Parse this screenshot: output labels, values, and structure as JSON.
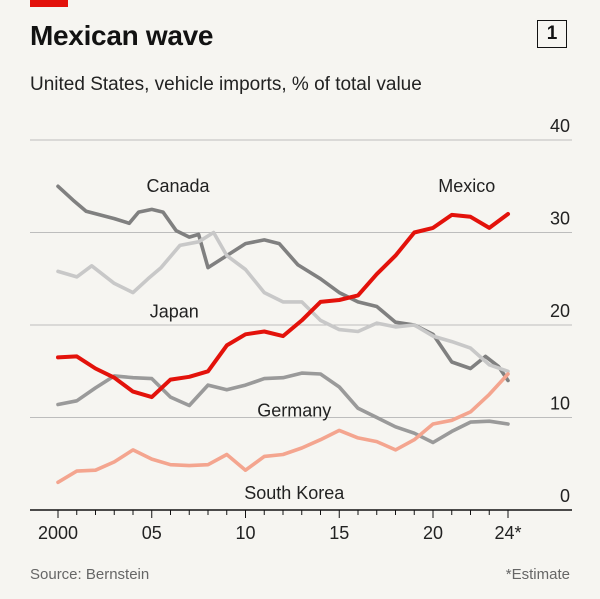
{
  "header": {
    "title": "Mexican wave",
    "badge": "1",
    "subtitle": "United States, vehicle imports, % of total value"
  },
  "footer": {
    "source": "Source: Bernstein",
    "footnote": "*Estimate"
  },
  "colors": {
    "accent": "#e3120b",
    "mexico": "#e3120b",
    "canada": "#808080",
    "japan": "#c8c8c8",
    "germany": "#9a9a9a",
    "south_korea": "#f4a58f",
    "grid": "#bdbdbd",
    "text": "#121212"
  },
  "chart_data": {
    "type": "line",
    "title": "Mexican wave",
    "subtitle": "United States, vehicle imports, % of total value",
    "xlabel": "",
    "ylabel": "",
    "xlim": [
      2000,
      2024
    ],
    "ylim": [
      0,
      40
    ],
    "y_axis_side": "right",
    "grid": true,
    "x_ticks": [
      {
        "value": 2000,
        "label": "2000"
      },
      {
        "value": 2005,
        "label": "05"
      },
      {
        "value": 2010,
        "label": "10"
      },
      {
        "value": 2015,
        "label": "15"
      },
      {
        "value": 2020,
        "label": "20"
      },
      {
        "value": 2024,
        "label": "24*"
      }
    ],
    "y_ticks": [
      {
        "value": 0,
        "label": "0"
      },
      {
        "value": 10,
        "label": "10"
      },
      {
        "value": 20,
        "label": "20"
      },
      {
        "value": 30,
        "label": "30"
      },
      {
        "value": 40,
        "label": "40"
      }
    ],
    "series": [
      {
        "key": "canada",
        "name": "Canada",
        "label_at": [
          2006.4,
          34.4
        ],
        "points": [
          [
            2000,
            35
          ],
          [
            2000.8,
            33.5
          ],
          [
            2001.5,
            32.3
          ],
          [
            2003,
            31.5
          ],
          [
            2003.8,
            31
          ],
          [
            2004.3,
            32.2
          ],
          [
            2005,
            32.5
          ],
          [
            2005.6,
            32.2
          ],
          [
            2006.3,
            30.2
          ],
          [
            2007,
            29.5
          ],
          [
            2007.5,
            29.8
          ],
          [
            2008,
            26.2
          ],
          [
            2009,
            27.5
          ],
          [
            2010,
            28.8
          ],
          [
            2011,
            29.2
          ],
          [
            2011.8,
            28.8
          ],
          [
            2012.8,
            26.5
          ],
          [
            2014,
            25
          ],
          [
            2015,
            23.5
          ],
          [
            2016,
            22.5
          ],
          [
            2017,
            22
          ],
          [
            2018,
            20.3
          ],
          [
            2019,
            20
          ],
          [
            2020,
            19
          ],
          [
            2021,
            16
          ],
          [
            2022,
            15.3
          ],
          [
            2022.8,
            16.6
          ],
          [
            2023.5,
            15.5
          ],
          [
            2024,
            14
          ]
        ]
      },
      {
        "key": "japan",
        "name": "Japan",
        "label_at": [
          2006.2,
          20.8
        ],
        "points": [
          [
            2000,
            25.8
          ],
          [
            2001,
            25.2
          ],
          [
            2001.8,
            26.4
          ],
          [
            2003,
            24.5
          ],
          [
            2004,
            23.5
          ],
          [
            2004.8,
            25
          ],
          [
            2005.5,
            26.2
          ],
          [
            2006.5,
            28.6
          ],
          [
            2007.5,
            29
          ],
          [
            2008.3,
            30
          ],
          [
            2009,
            27.5
          ],
          [
            2010,
            26
          ],
          [
            2011,
            23.5
          ],
          [
            2012,
            22.5
          ],
          [
            2013,
            22.5
          ],
          [
            2014,
            20.5
          ],
          [
            2015,
            19.5
          ],
          [
            2016,
            19.3
          ],
          [
            2017,
            20.2
          ],
          [
            2018,
            19.8
          ],
          [
            2019,
            20
          ],
          [
            2020,
            18.8
          ],
          [
            2021,
            18.2
          ],
          [
            2022,
            17.5
          ],
          [
            2023,
            15.7
          ],
          [
            2024,
            15
          ]
        ]
      },
      {
        "key": "mexico",
        "name": "Mexico",
        "label_at": [
          2021.8,
          34.4
        ],
        "points": [
          [
            2000,
            16.5
          ],
          [
            2001,
            16.6
          ],
          [
            2002,
            15.3
          ],
          [
            2003,
            14.3
          ],
          [
            2004,
            12.8
          ],
          [
            2005,
            12.2
          ],
          [
            2006,
            14.1
          ],
          [
            2007,
            14.4
          ],
          [
            2008,
            15
          ],
          [
            2009,
            17.8
          ],
          [
            2010,
            19
          ],
          [
            2011,
            19.3
          ],
          [
            2012,
            18.8
          ],
          [
            2013,
            20.5
          ],
          [
            2014,
            22.5
          ],
          [
            2015,
            22.7
          ],
          [
            2016,
            23.2
          ],
          [
            2017,
            25.5
          ],
          [
            2018,
            27.5
          ],
          [
            2019,
            30
          ],
          [
            2020,
            30.5
          ],
          [
            2021,
            31.9
          ],
          [
            2022,
            31.7
          ],
          [
            2023,
            30.5
          ],
          [
            2024,
            32
          ]
        ]
      },
      {
        "key": "germany",
        "name": "Germany",
        "label_at": [
          2012.6,
          10.1
        ],
        "points": [
          [
            2000,
            11.4
          ],
          [
            2001,
            11.8
          ],
          [
            2002,
            13.2
          ],
          [
            2003,
            14.5
          ],
          [
            2004,
            14.3
          ],
          [
            2005,
            14.2
          ],
          [
            2006,
            12.2
          ],
          [
            2007,
            11.3
          ],
          [
            2008,
            13.5
          ],
          [
            2009,
            13
          ],
          [
            2010,
            13.5
          ],
          [
            2011,
            14.2
          ],
          [
            2012,
            14.3
          ],
          [
            2013,
            14.8
          ],
          [
            2014,
            14.7
          ],
          [
            2015,
            13.3
          ],
          [
            2016,
            11
          ],
          [
            2017,
            10
          ],
          [
            2018,
            9
          ],
          [
            2019,
            8.3
          ],
          [
            2020,
            7.3
          ],
          [
            2021,
            8.5
          ],
          [
            2022,
            9.5
          ],
          [
            2023,
            9.6
          ],
          [
            2024,
            9.3
          ]
        ]
      },
      {
        "key": "south_korea",
        "name": "South Korea",
        "label_at": [
          2012.6,
          1.2
        ],
        "points": [
          [
            2000,
            3
          ],
          [
            2001,
            4.2
          ],
          [
            2002,
            4.3
          ],
          [
            2003,
            5.2
          ],
          [
            2004,
            6.5
          ],
          [
            2005,
            5.5
          ],
          [
            2006,
            4.9
          ],
          [
            2007,
            4.8
          ],
          [
            2008,
            4.9
          ],
          [
            2009,
            6
          ],
          [
            2010,
            4.3
          ],
          [
            2011,
            5.8
          ],
          [
            2012,
            6
          ],
          [
            2013,
            6.7
          ],
          [
            2014,
            7.6
          ],
          [
            2015,
            8.6
          ],
          [
            2016,
            7.8
          ],
          [
            2017,
            7.4
          ],
          [
            2018,
            6.5
          ],
          [
            2019,
            7.6
          ],
          [
            2020,
            9.3
          ],
          [
            2021,
            9.7
          ],
          [
            2022,
            10.6
          ],
          [
            2023,
            12.5
          ],
          [
            2024,
            14.7
          ]
        ]
      }
    ]
  }
}
